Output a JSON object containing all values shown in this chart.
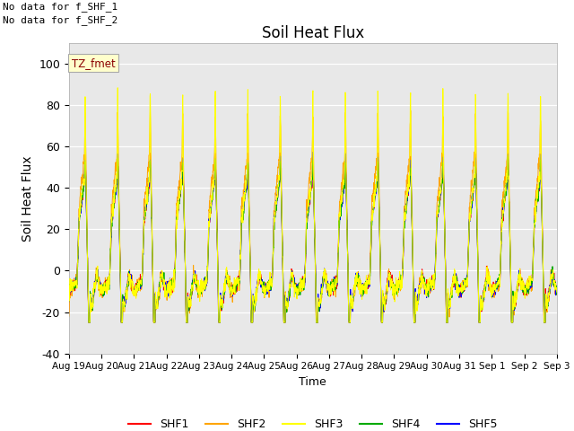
{
  "title": "Soil Heat Flux",
  "ylabel": "Soil Heat Flux",
  "xlabel": "Time",
  "ylim": [
    -40,
    110
  ],
  "yticks": [
    -40,
    -20,
    0,
    20,
    40,
    60,
    80,
    100
  ],
  "no_data_text": [
    "No data for f_SHF_1",
    "No data for f_SHF_2"
  ],
  "tz_label": "TZ_fmet",
  "colors": {
    "SHF1": "#ff0000",
    "SHF2": "#ffa500",
    "SHF3": "#ffff00",
    "SHF4": "#00aa00",
    "SHF5": "#0000ff"
  },
  "x_tick_labels": [
    "Aug 19",
    "Aug 20",
    "Aug 21",
    "Aug 22",
    "Aug 23",
    "Aug 24",
    "Aug 25",
    "Aug 26",
    "Aug 27",
    "Aug 28",
    "Aug 29",
    "Aug 30",
    "Aug 31",
    "Sep 1",
    "Sep 2",
    "Sep 3"
  ],
  "background_color": "#ffffff",
  "plot_bg_color": "#e8e8e8",
  "n_days": 15,
  "pts_per_day": 144
}
